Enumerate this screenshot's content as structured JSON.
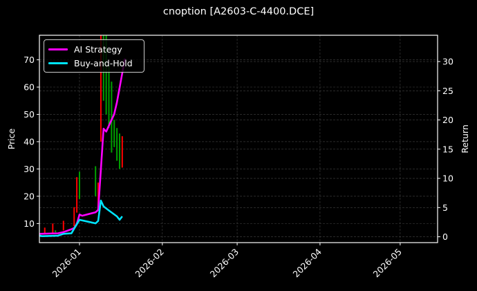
{
  "chart_data": {
    "type": "line",
    "title": "cnoption [A2603-C-4400.DCE]",
    "xlabel": "",
    "ylabel": "Price",
    "y2label": "Return",
    "xlim": [
      "2025-12-17",
      "2026-05-15"
    ],
    "ylim": [
      3,
      79
    ],
    "y2lim": [
      -1,
      34.5
    ],
    "x_ticks": [
      "2026-01",
      "2026-02",
      "2026-03",
      "2026-04",
      "2026-05"
    ],
    "y_ticks": [
      10,
      20,
      30,
      40,
      50,
      60,
      70
    ],
    "y2_ticks": [
      0,
      5,
      10,
      15,
      20,
      25,
      30
    ],
    "grid": true,
    "legend_position": "upper left",
    "legend": [
      "AI Strategy",
      "Buy-and-Hold"
    ],
    "series": [
      {
        "name": "AI Strategy",
        "axis": "right",
        "color": "#ff00ff",
        "points": [
          {
            "x": "2025-12-17",
            "y": 0.5
          },
          {
            "x": "2025-12-24",
            "y": 0.6
          },
          {
            "x": "2025-12-26",
            "y": 0.8
          },
          {
            "x": "2025-12-29",
            "y": 1.3
          },
          {
            "x": "2025-12-30",
            "y": 1.5
          },
          {
            "x": "2025-12-31",
            "y": 2.2
          },
          {
            "x": "2026-01-01",
            "y": 3.8
          },
          {
            "x": "2026-01-02",
            "y": 3.6
          },
          {
            "x": "2026-01-07",
            "y": 4.2
          },
          {
            "x": "2026-01-08",
            "y": 4.6
          },
          {
            "x": "2026-01-09",
            "y": 11.5
          },
          {
            "x": "2026-01-10",
            "y": 18.5
          },
          {
            "x": "2026-01-11",
            "y": 18.0
          },
          {
            "x": "2026-01-14",
            "y": 21.0
          },
          {
            "x": "2026-01-15",
            "y": 23.0
          },
          {
            "x": "2026-01-18",
            "y": 30.5
          }
        ]
      },
      {
        "name": "Buy-and-Hold",
        "axis": "right",
        "color": "#00e5ff",
        "points": [
          {
            "x": "2025-12-17",
            "y": 0.2
          },
          {
            "x": "2025-12-18",
            "y": 0.1
          },
          {
            "x": "2025-12-24",
            "y": 0.2
          },
          {
            "x": "2025-12-26",
            "y": 0.5
          },
          {
            "x": "2025-12-29",
            "y": 0.6
          },
          {
            "x": "2025-12-30",
            "y": 1.4
          },
          {
            "x": "2026-01-01",
            "y": 2.9
          },
          {
            "x": "2026-01-07",
            "y": 2.3
          },
          {
            "x": "2026-01-08",
            "y": 2.7
          },
          {
            "x": "2026-01-09",
            "y": 6.2
          },
          {
            "x": "2026-01-10",
            "y": 5.2
          },
          {
            "x": "2026-01-12",
            "y": 4.5
          },
          {
            "x": "2026-01-15",
            "y": 3.5
          },
          {
            "x": "2026-01-16",
            "y": 2.9
          },
          {
            "x": "2026-01-17",
            "y": 3.5
          }
        ]
      }
    ],
    "candles": [
      {
        "x": "2025-12-19",
        "low": 6.5,
        "high": 8.5,
        "color": "red"
      },
      {
        "x": "2025-12-22",
        "low": 6.5,
        "high": 10.0,
        "color": "red"
      },
      {
        "x": "2025-12-23",
        "low": 6.8,
        "high": 7.5,
        "color": "green"
      },
      {
        "x": "2025-12-26",
        "low": 7.5,
        "high": 11.0,
        "color": "red"
      },
      {
        "x": "2025-12-30",
        "low": 9.0,
        "high": 16.0,
        "color": "red"
      },
      {
        "x": "2025-12-31",
        "low": 14.0,
        "high": 27.0,
        "color": "red"
      },
      {
        "x": "2026-01-01",
        "low": 19.0,
        "high": 29.0,
        "color": "green"
      },
      {
        "x": "2026-01-07",
        "low": 20.0,
        "high": 31.0,
        "color": "green"
      },
      {
        "x": "2026-01-08",
        "low": 15.0,
        "high": 25.0,
        "color": "red"
      },
      {
        "x": "2026-01-09",
        "low": 40.0,
        "high": 79.0,
        "color": "red"
      },
      {
        "x": "2026-01-10",
        "low": 55.0,
        "high": 79.0,
        "color": "green"
      },
      {
        "x": "2026-01-11",
        "low": 50.0,
        "high": 79.0,
        "color": "green"
      },
      {
        "x": "2026-01-12",
        "low": 45.0,
        "high": 68.0,
        "color": "green"
      },
      {
        "x": "2026-01-13",
        "low": 36.0,
        "high": 62.0,
        "color": "green"
      },
      {
        "x": "2026-01-14",
        "low": 38.0,
        "high": 48.0,
        "color": "green"
      },
      {
        "x": "2026-01-15",
        "low": 33.0,
        "high": 45.0,
        "color": "green"
      },
      {
        "x": "2026-01-16",
        "low": 30.0,
        "high": 43.0,
        "color": "green"
      },
      {
        "x": "2026-01-17",
        "low": 30.5,
        "high": 42.0,
        "color": "red"
      }
    ]
  },
  "colors": {
    "background": "#000000",
    "axis": "#ffffff",
    "grid": "#444444",
    "up": "#00a000",
    "down": "#ff0000",
    "strategy": "#ff00ff",
    "buy_hold": "#00e5ff"
  }
}
